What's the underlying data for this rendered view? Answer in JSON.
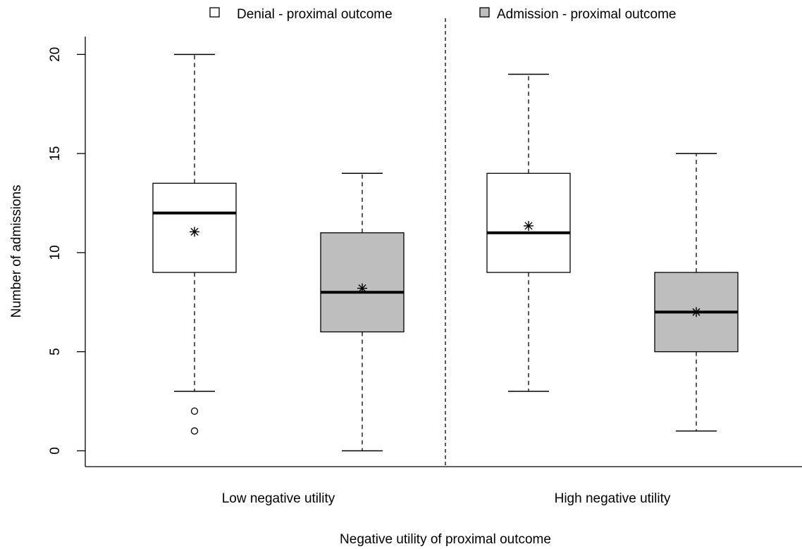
{
  "chart_data": {
    "type": "boxplot",
    "title": "",
    "xlabel": "Negative utility of proximal outcome",
    "ylabel": "Number of admissions",
    "ylim": [
      -0.8,
      20.9
    ],
    "yticks": [
      0,
      5,
      10,
      15,
      20
    ],
    "grid": false,
    "legend_position": "top",
    "legend": [
      {
        "label": "Denial - proximal outcome",
        "color": "#ffffff"
      },
      {
        "label": "Admission - proximal outcome",
        "color": "#bebebe"
      }
    ],
    "groups": [
      "Low negative utility",
      "High negative utility"
    ],
    "boxes": [
      {
        "group": "Low negative utility",
        "series": "Denial - proximal outcome",
        "color": "#ffffff",
        "min": 3,
        "q1": 9,
        "median": 12,
        "q3": 13.5,
        "max": 20,
        "mean": 11.05,
        "outliers": [
          2,
          1
        ]
      },
      {
        "group": "Low negative utility",
        "series": "Admission - proximal outcome",
        "color": "#bebebe",
        "min": 0,
        "q1": 6,
        "median": 8,
        "q3": 11,
        "max": 14,
        "mean": 8.2,
        "outliers": []
      },
      {
        "group": "High negative utility",
        "series": "Denial - proximal outcome",
        "color": "#ffffff",
        "min": 3,
        "q1": 9,
        "median": 11,
        "q3": 14,
        "max": 19,
        "mean": 11.35,
        "outliers": []
      },
      {
        "group": "High negative utility",
        "series": "Admission - proximal outcome",
        "color": "#bebebe",
        "min": 1,
        "q1": 5,
        "median": 7,
        "q3": 9,
        "max": 15,
        "mean": 7.0,
        "outliers": []
      }
    ]
  }
}
